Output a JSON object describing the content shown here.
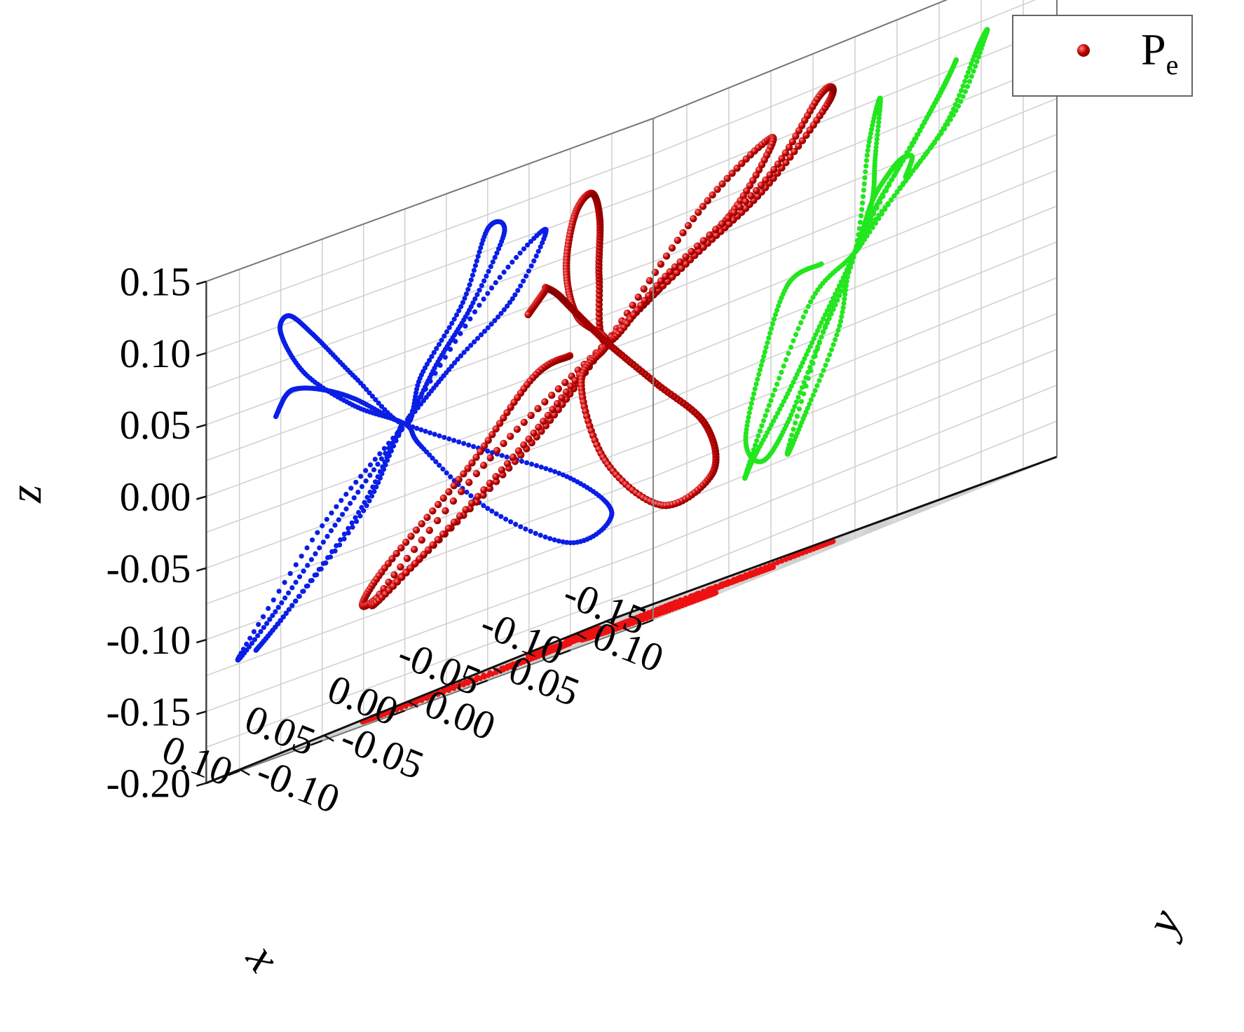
{
  "chart_data": {
    "type": "scatter",
    "title": "",
    "axes": {
      "x": {
        "label": "x",
        "ticks": [
          "-0.15",
          "-0.10",
          "-0.05",
          "0.00",
          "0.05",
          "0.10"
        ],
        "range": [
          -0.15,
          0.12
        ]
      },
      "y": {
        "label": "y",
        "ticks": [
          "-0.10",
          "-0.05",
          "0.00",
          "0.05",
          "0.10"
        ],
        "range": [
          -0.12,
          0.12
        ]
      },
      "z": {
        "label": "z",
        "ticks": [
          "-0.20",
          "-0.15",
          "-0.10",
          "-0.05",
          "0.00",
          "0.05",
          "0.10",
          "0.15"
        ],
        "range": [
          -0.2,
          0.15
        ]
      }
    },
    "grid": true,
    "legend": {
      "placement": "top-right",
      "entries": [
        {
          "main": "P",
          "sub": "e",
          "color": "#dd2222"
        }
      ]
    },
    "series": [
      {
        "name": "P_e",
        "color": "#b00000",
        "projection": "3D trajectory"
      },
      {
        "name": "",
        "color": "#0a1ee6",
        "projection": "onto x-z wall"
      },
      {
        "name": "",
        "color": "#ee1111",
        "projection": "onto x-y floor"
      },
      {
        "name": "",
        "color": "#22e61e",
        "projection": "onto y-z wall"
      }
    ],
    "sample_points_3d": [
      {
        "x": 0.0,
        "y": 0.0,
        "z": 0.0
      },
      {
        "x": -0.12,
        "y": 0.03,
        "z": -0.12
      },
      {
        "x": -0.03,
        "y": 0.075,
        "z": 0.11
      },
      {
        "x": 0.07,
        "y": 0.05,
        "z": 0.1
      },
      {
        "x": 0.09,
        "y": -0.06,
        "z": -0.06
      }
    ]
  },
  "colors": {
    "traj3d": "#b00000",
    "traj3d_highlight": "#ff6a6a",
    "xz_projection": "#0a1ee6",
    "xy_projection": "#ee1111",
    "yz_projection": "#22e61e",
    "grid": "#cfcfcf",
    "axis": "#000000"
  }
}
